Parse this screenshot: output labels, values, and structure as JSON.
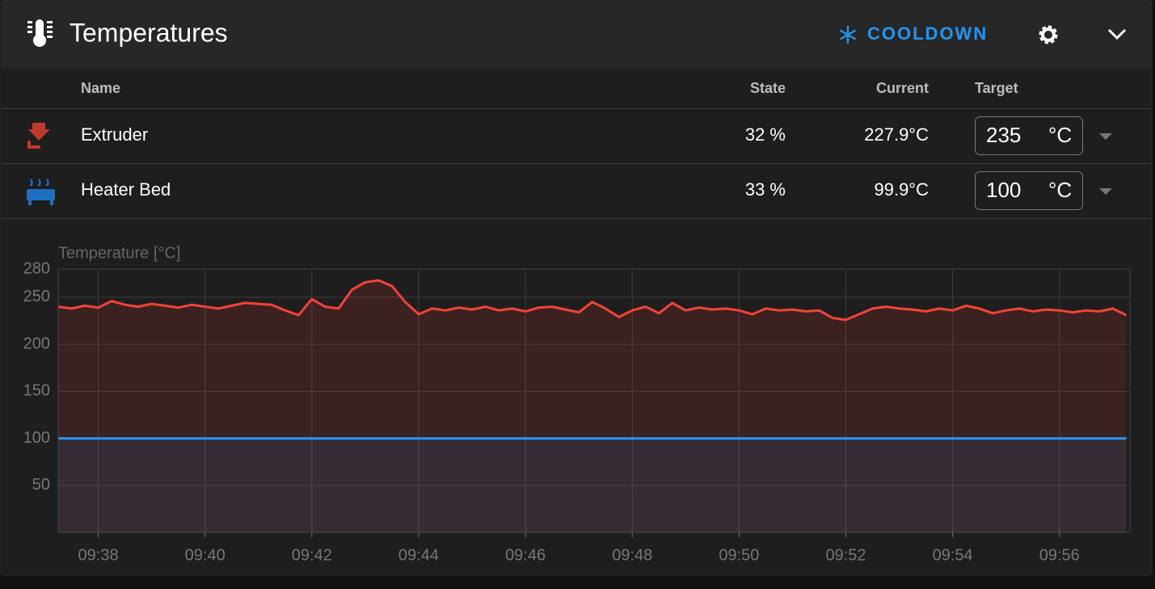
{
  "header": {
    "title": "Temperatures",
    "cooldown": "COOLDOWN"
  },
  "table": {
    "columns": [
      "Name",
      "State",
      "Current",
      "Target"
    ],
    "rows": [
      [
        "Extruder",
        "32 %",
        "227.9°C",
        "235",
        "°C"
      ],
      [
        "Heater Bed",
        "33 %",
        "99.9°C",
        "100",
        "°C"
      ]
    ]
  },
  "chart_data": {
    "type": "line",
    "y_label": "Temperature [°C]",
    "x": [
      577.25,
      577.5,
      577.75,
      578,
      578.25,
      578.5,
      578.75,
      579,
      579.25,
      579.5,
      579.75,
      580,
      580.25,
      580.5,
      580.75,
      581,
      581.25,
      581.5,
      581.75,
      582,
      582.25,
      582.5,
      582.75,
      583,
      583.25,
      583.5,
      583.75,
      584,
      584.25,
      584.5,
      584.75,
      585,
      585.25,
      585.5,
      585.75,
      586,
      586.25,
      586.5,
      586.75,
      587,
      587.25,
      587.5,
      587.75,
      588,
      588.25,
      588.5,
      588.75,
      589,
      589.25,
      589.5,
      589.75,
      590,
      590.25,
      590.5,
      590.75,
      591,
      591.25,
      591.5,
      591.75,
      592,
      592.25,
      592.5,
      592.75,
      593,
      593.25,
      593.5,
      593.75,
      594,
      594.25,
      594.5,
      594.75,
      595,
      595.25,
      595.5,
      595.75,
      596,
      596.25,
      596.5,
      596.75,
      597,
      597.25
    ],
    "xlim": [
      577.25,
      597.32
    ],
    "xticks": [
      {
        "value": 578,
        "label": "09:38"
      },
      {
        "value": 580,
        "label": "09:40"
      },
      {
        "value": 582,
        "label": "09:42"
      },
      {
        "value": 584,
        "label": "09:44"
      },
      {
        "value": 586,
        "label": "09:46"
      },
      {
        "value": 588,
        "label": "09:48"
      },
      {
        "value": 590,
        "label": "09:50"
      },
      {
        "value": 592,
        "label": "09:52"
      },
      {
        "value": 594,
        "label": "09:54"
      },
      {
        "value": 596,
        "label": "09:56"
      }
    ],
    "ylim": [
      0,
      280
    ],
    "yticks": [
      50,
      100,
      150,
      200,
      250,
      280
    ],
    "grid": true,
    "series": [
      {
        "color": "#f44336",
        "values": [
          240,
          238,
          241,
          239,
          246,
          242,
          240,
          243,
          241,
          239,
          242,
          240,
          238,
          241,
          244,
          243,
          242,
          236,
          231,
          248,
          240,
          238,
          258,
          266,
          268,
          262,
          245,
          232,
          238,
          236,
          239,
          237,
          240,
          236,
          238,
          235,
          239,
          240,
          237,
          234,
          245,
          238,
          229,
          236,
          240,
          233,
          244,
          236,
          239,
          237,
          238,
          236,
          232,
          238,
          236,
          237,
          235,
          236,
          228,
          226,
          232,
          238,
          240,
          238,
          237,
          235,
          238,
          236,
          241,
          238,
          233,
          236,
          238,
          235,
          237,
          236,
          234,
          236,
          235,
          238,
          231
        ]
      },
      {
        "color": "#2196f3",
        "values": [
          100,
          100,
          100,
          100,
          100,
          100,
          100,
          100,
          100,
          100,
          100,
          100,
          100,
          100,
          100,
          100,
          100,
          100,
          100,
          100,
          100,
          100,
          100,
          100,
          100,
          100,
          100,
          100,
          100,
          100,
          100,
          100,
          100,
          100,
          100,
          100,
          100,
          100,
          100,
          100,
          100,
          100,
          100,
          100,
          100,
          100,
          100,
          100,
          100,
          100,
          100,
          100,
          100,
          100,
          100,
          100,
          100,
          100,
          100,
          100,
          100,
          100,
          100,
          100,
          100,
          100,
          100,
          100,
          100,
          100,
          100,
          100,
          100,
          100,
          100,
          100,
          100,
          100,
          100,
          100,
          100
        ]
      }
    ]
  }
}
